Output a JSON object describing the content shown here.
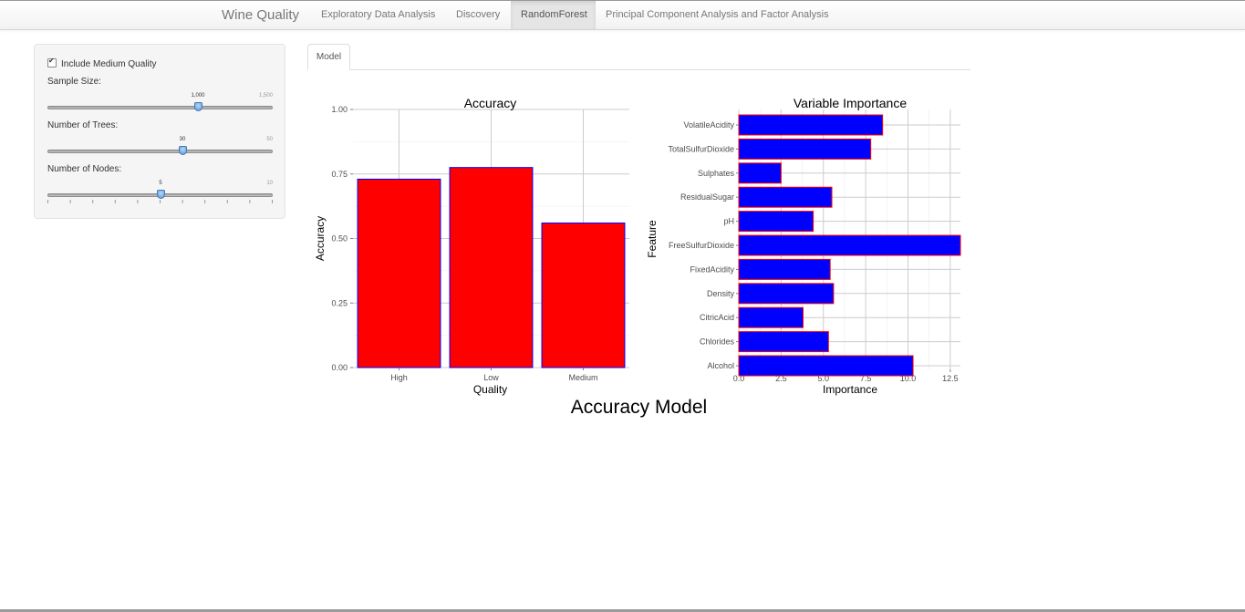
{
  "navbar": {
    "brand": "Wine Quality",
    "items": [
      {
        "label": "Exploratory Data Analysis",
        "active": false
      },
      {
        "label": "Discovery",
        "active": false
      },
      {
        "label": "RandomForest",
        "active": true
      },
      {
        "label": "Principal Component Analysis and Factor Analysis",
        "active": false
      }
    ]
  },
  "sidebar": {
    "checkbox_label": "Include Medium Quality",
    "checkbox_checked": true,
    "sliders": [
      {
        "label": "Sample Size:",
        "value": 1000,
        "value_label": "1,000",
        "max": 1500,
        "max_label": "1,500"
      },
      {
        "label": "Number of Trees:",
        "value": 30,
        "value_label": "30",
        "max": 50,
        "max_label": "50"
      },
      {
        "label": "Number of Nodes:",
        "value": 5,
        "value_label": "5",
        "max": 10,
        "max_label": "10"
      }
    ]
  },
  "tabs": [
    {
      "label": "Model",
      "active": true
    }
  ],
  "main_title": "Accuracy Model",
  "colors": {
    "accuracy_fill": "#ff0000",
    "accuracy_outline": "#0000ff",
    "importance_fill": "#0000ff",
    "importance_outline": "#ff0000",
    "gridline": "#cccccc"
  },
  "chart_data": [
    {
      "type": "bar",
      "title": "Accuracy",
      "xlabel": "Quality",
      "ylabel": "Accuracy",
      "categories": [
        "High",
        "Low",
        "Medium"
      ],
      "values": [
        0.73,
        0.775,
        0.56
      ],
      "ylim": [
        0,
        1
      ],
      "yticks": [
        0,
        0.25,
        0.5,
        0.75,
        1
      ],
      "ytick_labels": [
        "0.00",
        "0.25",
        "0.50",
        "0.75",
        "1.00"
      ],
      "grid": true
    },
    {
      "type": "bar",
      "orientation": "horizontal",
      "title": "Variable Importance",
      "xlabel": "Importance",
      "ylabel": "Feature",
      "categories": [
        "VolatileAcidity",
        "TotalSulfurDioxide",
        "Sulphates",
        "ResidualSugar",
        "pH",
        "FreeSulfurDioxide",
        "FixedAcidity",
        "Density",
        "CitricAcid",
        "Chlorides",
        "Alcohol"
      ],
      "values": [
        8.5,
        7.8,
        2.5,
        5.5,
        4.4,
        13.1,
        5.4,
        5.6,
        3.8,
        5.3,
        10.3
      ],
      "xlim": [
        0,
        13.1
      ],
      "xticks": [
        0,
        2.5,
        5,
        7.5,
        10,
        12.5
      ],
      "xtick_labels": [
        "0.0",
        "2.5",
        "5.0",
        "7.5",
        "10.0",
        "12.5"
      ],
      "grid": true
    }
  ]
}
